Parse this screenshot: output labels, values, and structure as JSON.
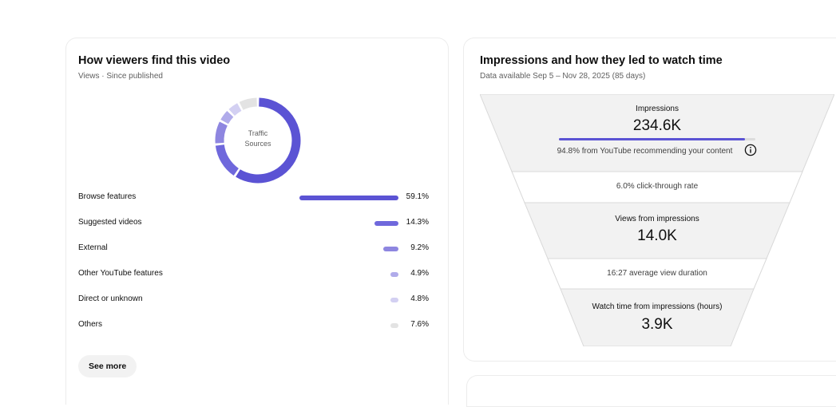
{
  "colors": {
    "accent": "#5b53d4",
    "accent_light": "#8e86e0",
    "accent_lighter": "#b8b3ea",
    "accent_faint": "#dcdaf3",
    "neutral": "#e5e5e5",
    "funnel_dark": "#f2f2f2",
    "funnel_light": "#ffffff",
    "funnel_border": "#d9d9d9"
  },
  "traffic": {
    "title": "How viewers find this video",
    "subtitle": "Views · Since published",
    "donut_label_line1": "Traffic",
    "donut_label_line2": "Sources",
    "sources": [
      {
        "name": "Browse features",
        "percent": 59.1,
        "label": "59.1%",
        "color": "#5b53d4"
      },
      {
        "name": "Suggested videos",
        "percent": 14.3,
        "label": "14.3%",
        "color": "#6f68dc"
      },
      {
        "name": "External",
        "percent": 9.2,
        "label": "9.2%",
        "color": "#8e86e0"
      },
      {
        "name": "Other YouTube features",
        "percent": 4.9,
        "label": "4.9%",
        "color": "#b0abea"
      },
      {
        "name": "Direct or unknown",
        "percent": 4.8,
        "label": "4.8%",
        "color": "#d3d0f2"
      },
      {
        "name": "Others",
        "percent": 7.6,
        "label": "7.6%",
        "color": "#e3e3e3"
      }
    ],
    "see_more_label": "See more"
  },
  "funnel": {
    "title": "Impressions and how they led to watch time",
    "subtitle": "Data available Sep 5 – Nov 28, 2025 (85 days)",
    "impressions_label": "Impressions",
    "impressions_value": "234.6K",
    "recommended_share": 0.948,
    "recommended_text": "94.8% from YouTube recommending your content",
    "ctr_text": "6.0% click-through rate",
    "views_label": "Views from impressions",
    "views_value": "14.0K",
    "avd_text": "16:27 average view duration",
    "watch_label": "Watch time from impressions (hours)",
    "watch_value": "3.9K"
  }
}
